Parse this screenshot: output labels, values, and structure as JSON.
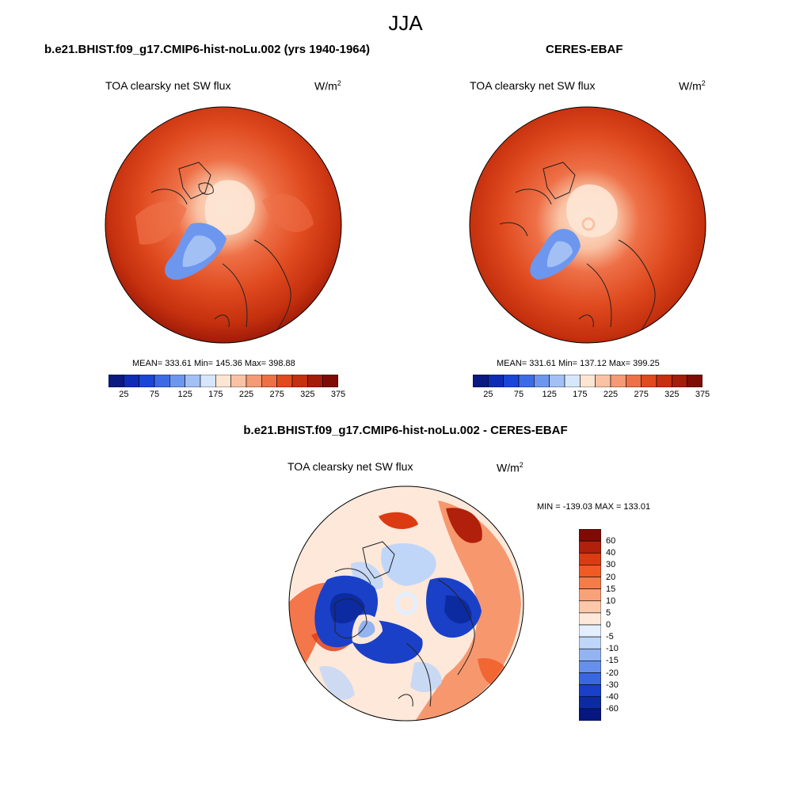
{
  "season": "JJA",
  "panels": [
    {
      "title": "b.e21.BHIST.f09_g17.CMIP6-hist-noLu.002 (yrs 1940-1964)",
      "variable": "TOA clearsky net SW flux",
      "units": "W/m",
      "units_exp": "2",
      "stats": "MEAN= 333.61  Min= 145.36  Max= 398.88"
    },
    {
      "title": "CERES-EBAF",
      "variable": "TOA clearsky net SW flux",
      "units": "W/m",
      "units_exp": "2",
      "stats": "MEAN= 331.61  Min= 137.12  Max= 399.25"
    }
  ],
  "colorbar_abs": {
    "tick_labels": [
      "25",
      "75",
      "125",
      "175",
      "225",
      "275",
      "325",
      "375"
    ],
    "colors": [
      "#0a1a80",
      "#0f2db4",
      "#1a46d8",
      "#3c6be6",
      "#6d96ef",
      "#a3c0f5",
      "#d6e6fb",
      "#fde5d4",
      "#f9c2a4",
      "#f49a74",
      "#ee7047",
      "#e04a1f",
      "#c5300e",
      "#a41d08",
      "#7e0c05"
    ]
  },
  "diff_panel": {
    "title": "b.e21.BHIST.f09_g17.CMIP6-hist-noLu.002 - CERES-EBAF",
    "variable": "TOA clearsky net SW flux",
    "units": "W/m",
    "units_exp": "2",
    "stats": "MIN = -139.03 MAX = 133.01"
  },
  "colorbar_diff": {
    "tick_labels": [
      "60",
      "40",
      "30",
      "20",
      "15",
      "10",
      "5",
      "0",
      "-5",
      "-10",
      "-15",
      "-20",
      "-30",
      "-40",
      "-60"
    ],
    "colors": [
      "#7e0c05",
      "#b0200a",
      "#dc3a12",
      "#f05a25",
      "#f47c4a",
      "#f8a27a",
      "#fbc8aa",
      "#fde8da",
      "#e3efff",
      "#c0d6f8",
      "#93b4f1",
      "#6690ea",
      "#3a66e0",
      "#1a40c8",
      "#0c2ba0",
      "#061880"
    ]
  }
}
